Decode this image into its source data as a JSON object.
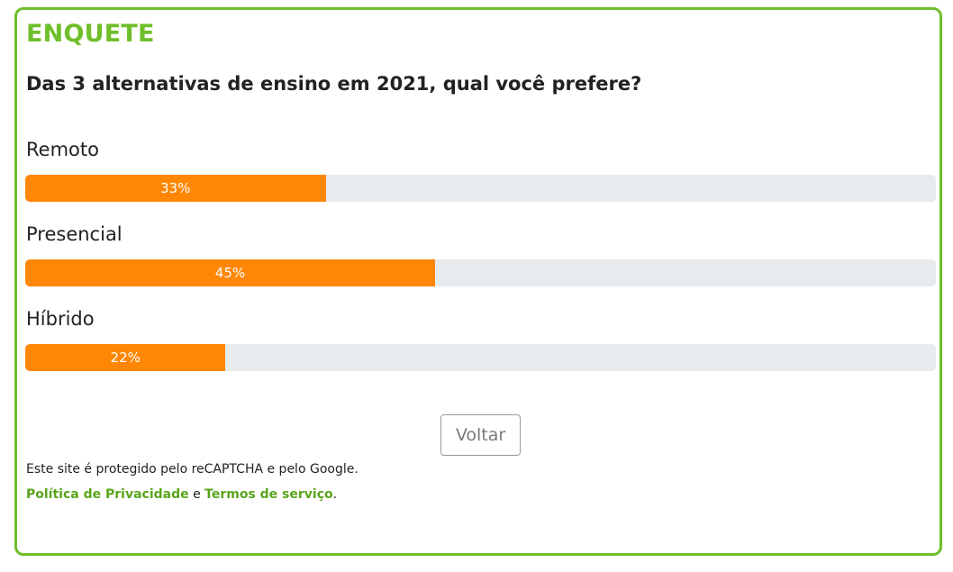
{
  "poll": {
    "heading": "ENQUETE",
    "question": "Das 3 alternativas de ensino em 2021, qual você prefere?",
    "options": [
      {
        "label": "Remoto",
        "percent_text": "33%",
        "percent": 33
      },
      {
        "label": "Presencial",
        "percent_text": "45%",
        "percent": 45
      },
      {
        "label": "Híbrido",
        "percent_text": "22%",
        "percent": 22
      }
    ],
    "back_button": "Voltar"
  },
  "footer": {
    "note": "Este site é protegido pelo reCAPTCHA e pelo Google.",
    "privacy_link": "Política de Privacidade",
    "conjunction": "e",
    "terms_link": "Termos de serviço",
    "period": "."
  },
  "colors": {
    "accent_green": "#6fbf2a",
    "bar_fill": "#ff8705",
    "bar_track": "#e8ebee"
  }
}
